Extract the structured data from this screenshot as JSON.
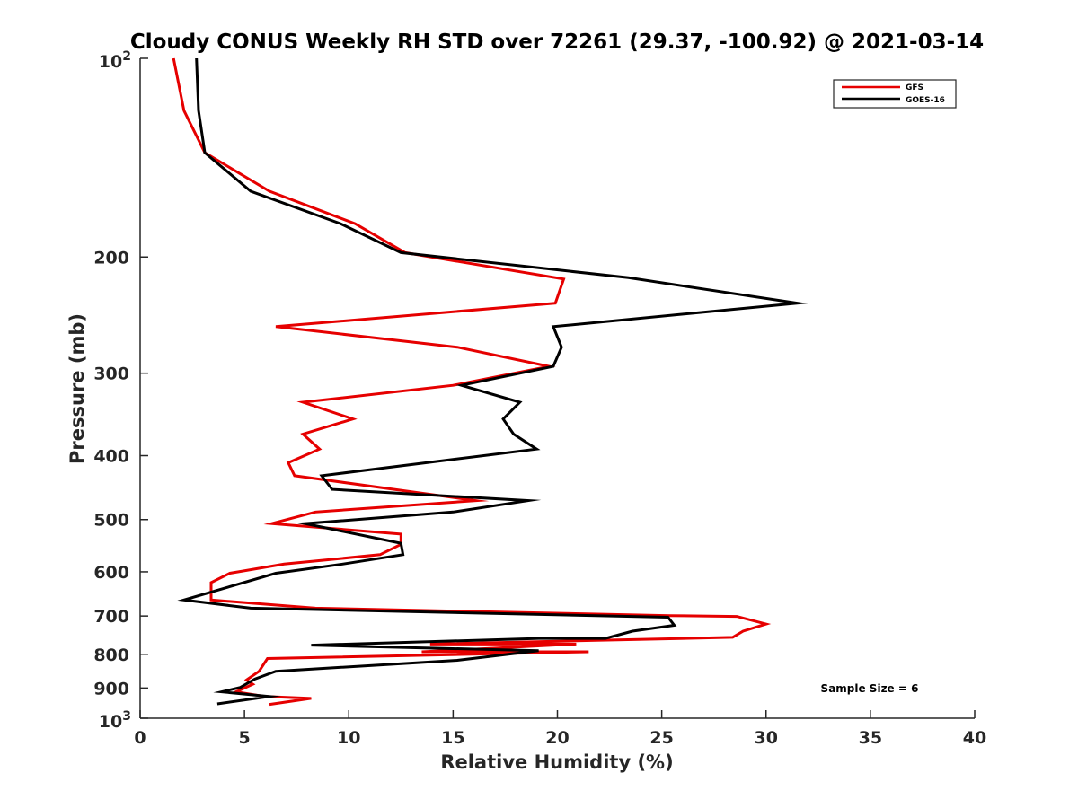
{
  "chart_data": {
    "type": "line",
    "title": "Cloudy CONUS Weekly RH STD over 72261 (29.37, -100.92) @ 2021-03-14",
    "xlabel": "Relative Humidity (%)",
    "ylabel": "Pressure (mb)",
    "xlim": [
      0,
      40
    ],
    "ylim": [
      100,
      1000
    ],
    "yscale": "log",
    "yreversed": true,
    "grid": false,
    "x_ticks": [
      0,
      5,
      10,
      15,
      20,
      25,
      30,
      35,
      40
    ],
    "x_tick_labels": [
      "0",
      "5",
      "10",
      "15",
      "20",
      "25",
      "30",
      "35",
      "40"
    ],
    "y_ticks": [
      100,
      200,
      300,
      400,
      500,
      600,
      700,
      800,
      900,
      1000
    ],
    "y_tick_labels": [
      {
        "base": "10",
        "exp": "2"
      },
      {
        "text": "200"
      },
      {
        "text": "300"
      },
      {
        "text": "400"
      },
      {
        "text": "500"
      },
      {
        "text": "600"
      },
      {
        "text": "700"
      },
      {
        "text": "800"
      },
      {
        "text": "900"
      },
      {
        "base": "10",
        "exp": "3"
      }
    ],
    "legend": {
      "position": "top-right",
      "entries": [
        {
          "name": "GFS",
          "color": "#e60000"
        },
        {
          "name": "GOES-16",
          "color": "#000000"
        }
      ]
    },
    "annotation": "Sample Size = 6",
    "series": [
      {
        "name": "GFS",
        "color": "#e60000",
        "points": [
          [
            1.6,
            100
          ],
          [
            2.1,
            120
          ],
          [
            3.1,
            139
          ],
          [
            6.2,
            159
          ],
          [
            10.3,
            178
          ],
          [
            12.7,
            197
          ],
          [
            20.3,
            216
          ],
          [
            19.9,
            235
          ],
          [
            6.5,
            255
          ],
          [
            15.2,
            274
          ],
          [
            19.6,
            293
          ],
          [
            15.0,
            313
          ],
          [
            7.8,
            332
          ],
          [
            10.2,
            352
          ],
          [
            7.8,
            371
          ],
          [
            8.6,
            391
          ],
          [
            7.1,
            410
          ],
          [
            7.4,
            429
          ],
          [
            16.1,
            468
          ],
          [
            8.4,
            487
          ],
          [
            6.3,
            507
          ],
          [
            12.5,
            526
          ],
          [
            12.5,
            545
          ],
          [
            11.5,
            565
          ],
          [
            6.9,
            584
          ],
          [
            4.3,
            603
          ],
          [
            3.4,
            623
          ],
          [
            3.4,
            662
          ],
          [
            8.4,
            681
          ],
          [
            25.4,
            699
          ],
          [
            28.6,
            701
          ],
          [
            30.0,
            720
          ],
          [
            28.9,
            738
          ],
          [
            28.4,
            754
          ],
          [
            13.9,
            772
          ],
          [
            20.9,
            772
          ],
          [
            13.5,
            793
          ],
          [
            21.5,
            793
          ],
          [
            6.1,
            812
          ],
          [
            5.7,
            849
          ],
          [
            5.1,
            875
          ],
          [
            5.4,
            888
          ],
          [
            4.6,
            912
          ],
          [
            6.0,
            927
          ],
          [
            8.2,
            933
          ],
          [
            6.2,
            953
          ]
        ]
      },
      {
        "name": "GOES-16",
        "color": "#000000",
        "points": [
          [
            2.7,
            100
          ],
          [
            2.8,
            120
          ],
          [
            3.1,
            139
          ],
          [
            5.3,
            159
          ],
          [
            9.6,
            178
          ],
          [
            12.5,
            197
          ],
          [
            23.4,
            215
          ],
          [
            31.5,
            235
          ],
          [
            19.8,
            255
          ],
          [
            20.2,
            274
          ],
          [
            19.8,
            293
          ],
          [
            15.4,
            313
          ],
          [
            18.2,
            332
          ],
          [
            17.4,
            352
          ],
          [
            17.9,
            371
          ],
          [
            19.0,
            391
          ],
          [
            8.7,
            429
          ],
          [
            9.2,
            450
          ],
          [
            18.6,
            468
          ],
          [
            15.0,
            487
          ],
          [
            7.9,
            507
          ],
          [
            12.5,
            543
          ],
          [
            12.6,
            565
          ],
          [
            9.7,
            584
          ],
          [
            6.5,
            603
          ],
          [
            2.1,
            662
          ],
          [
            5.3,
            681
          ],
          [
            25.3,
            703
          ],
          [
            25.6,
            723
          ],
          [
            23.6,
            738
          ],
          [
            22.3,
            757
          ],
          [
            19.1,
            757
          ],
          [
            8.2,
            775
          ],
          [
            19.1,
            790
          ],
          [
            15.2,
            817
          ],
          [
            6.5,
            849
          ],
          [
            5.5,
            872
          ],
          [
            4.8,
            898
          ],
          [
            3.9,
            912
          ],
          [
            6.2,
            927
          ],
          [
            3.7,
            951
          ]
        ]
      }
    ]
  }
}
